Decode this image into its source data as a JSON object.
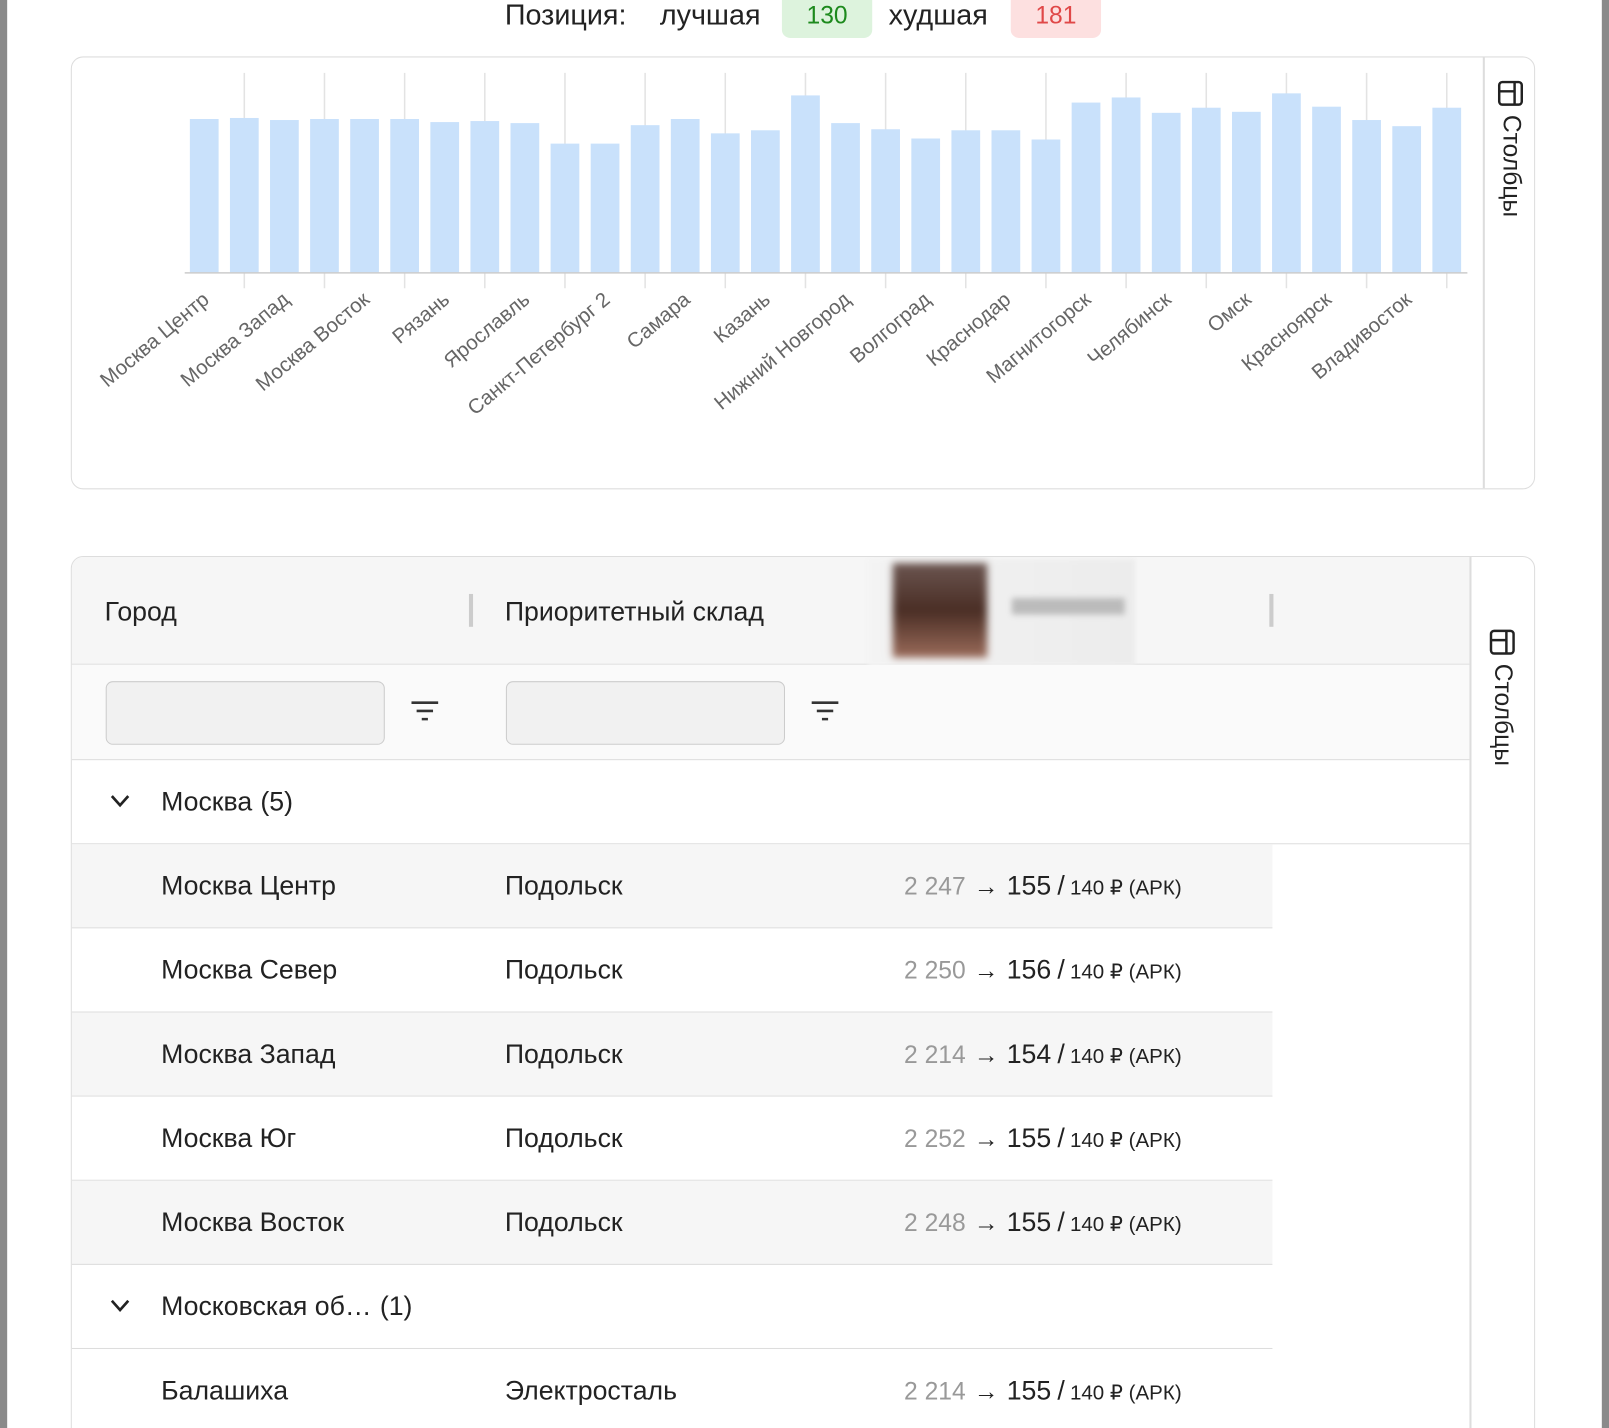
{
  "header": {
    "label": "Позиция:",
    "best_label": "лучшая",
    "best": 130,
    "worst_label": "худшая",
    "worst": 181
  },
  "chart_data": {
    "type": "bar",
    "categories": [
      "Москва Центр",
      null,
      "Москва Запад",
      null,
      "Москва Восток",
      null,
      "Рязань",
      null,
      "Ярославль",
      null,
      "Санкт-Петербург 2",
      null,
      "Самара",
      null,
      "Казань",
      null,
      "Нижний Новгород",
      null,
      "Волгоград",
      null,
      "Краснодар",
      null,
      "Магнитогорск",
      null,
      "Челябинск",
      null,
      "Омск",
      null,
      "Красноярск",
      null,
      "Владивосток",
      null
    ],
    "values": [
      150,
      151,
      149,
      150,
      150,
      150,
      147,
      148,
      146,
      126,
      126,
      144,
      150,
      136,
      139,
      173,
      146,
      140,
      131,
      139,
      139,
      130,
      166,
      171,
      156,
      161,
      157,
      175,
      162,
      149,
      143,
      161
    ],
    "color": "#c9e1fb",
    "ylim": [
      0,
      200
    ],
    "grid": true
  },
  "chart_panel": {
    "columns_button": "Столбцы"
  },
  "table": {
    "columns": [
      "Город",
      "Приоритетный склад"
    ],
    "columns_button": "Столбцы",
    "arrow": "→",
    "slash": "/",
    "groups": [
      {
        "name": "Москва",
        "count": "(5)",
        "rows": [
          {
            "city": "Москва Центр",
            "warehouse": "Подольск",
            "from": "2 247",
            "to": 155,
            "price": "140 ₽ (АРК)"
          },
          {
            "city": "Москва Север",
            "warehouse": "Подольск",
            "from": "2 250",
            "to": 156,
            "price": "140 ₽ (АРК)"
          },
          {
            "city": "Москва Запад",
            "warehouse": "Подольск",
            "from": "2 214",
            "to": 154,
            "price": "140 ₽ (АРК)"
          },
          {
            "city": "Москва Юг",
            "warehouse": "Подольск",
            "from": "2 252",
            "to": 155,
            "price": "140 ₽ (АРК)"
          },
          {
            "city": "Москва Восток",
            "warehouse": "Подольск",
            "from": "2 248",
            "to": 155,
            "price": "140 ₽ (АРК)"
          }
        ]
      },
      {
        "name": "Московская об…",
        "count": "(1)",
        "rows": [
          {
            "city": "Балашиха",
            "warehouse": "Электросталь",
            "from": "2 214",
            "to": 155,
            "price": "140 ₽ (АРК)"
          }
        ]
      }
    ]
  }
}
